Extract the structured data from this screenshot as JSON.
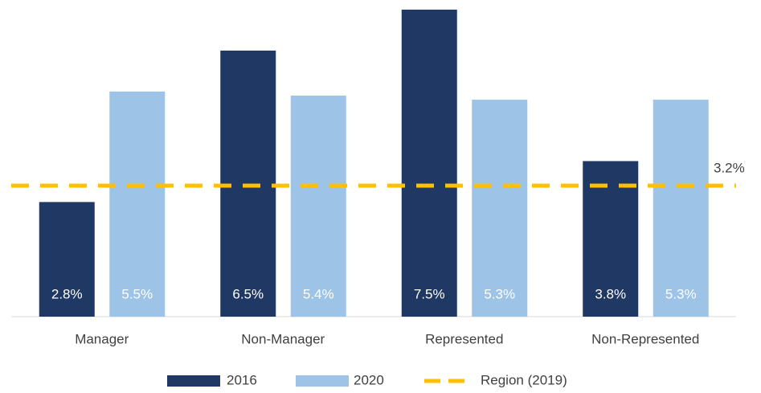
{
  "chart_data": {
    "type": "bar",
    "categories": [
      "Manager",
      "Non-Manager",
      "Represented",
      "Non-Represented"
    ],
    "series": [
      {
        "name": "2016",
        "color": "#203864",
        "values": [
          2.8,
          6.5,
          7.5,
          3.8
        ],
        "value_labels": [
          "2.8%",
          "6.5%",
          "7.5%",
          "3.8%"
        ]
      },
      {
        "name": "2020",
        "color": "#9dc3e6",
        "values": [
          5.5,
          5.4,
          5.3,
          5.3
        ],
        "value_labels": [
          "5.5%",
          "5.4%",
          "5.3%",
          "5.3%"
        ]
      }
    ],
    "reference_line": {
      "name": "Region (2019)",
      "value": 3.2,
      "value_label": "3.2%",
      "color": "#ffc000"
    }
  }
}
